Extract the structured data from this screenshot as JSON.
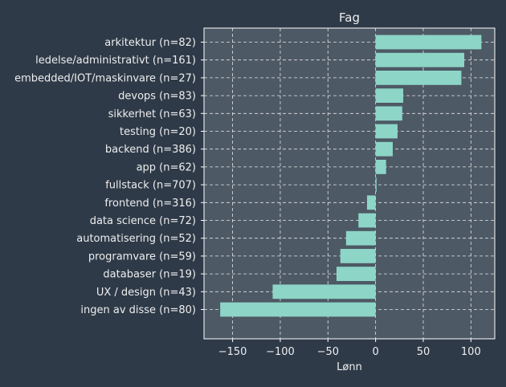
{
  "chart_data": {
    "type": "bar",
    "orientation": "horizontal",
    "title": "Fag",
    "xlabel": "Lønn",
    "ylabel": "",
    "xlim": [
      -180,
      125
    ],
    "xticks": [
      -150,
      -100,
      -50,
      0,
      50,
      100
    ],
    "xtick_labels": [
      "−150",
      "−100",
      "−50",
      "0",
      "50",
      "100"
    ],
    "grid": true,
    "categories": [
      "arkitektur (n=82)",
      "ledelse/administrativt (n=161)",
      "embedded/IOT/maskinvare (n=27)",
      "devops (n=83)",
      "sikkerhet (n=63)",
      "testing (n=20)",
      "backend (n=386)",
      "app (n=62)",
      "fullstack (n=707)",
      "frontend (n=316)",
      "data science (n=72)",
      "automatisering (n=52)",
      "programvare (n=59)",
      "databaser (n=19)",
      "UX / design (n=43)",
      "ingen av disse (n=80)"
    ],
    "values": [
      111,
      93,
      90,
      29,
      28,
      23,
      18,
      11,
      1,
      -9,
      -18,
      -31,
      -37,
      -41,
      -108,
      -163
    ]
  },
  "colors": {
    "background": "#2e3a48",
    "plot_background": "#4d5965",
    "bar": "#8dd5c7",
    "text": "#eeeeee",
    "grid": "#e5e5e5"
  }
}
